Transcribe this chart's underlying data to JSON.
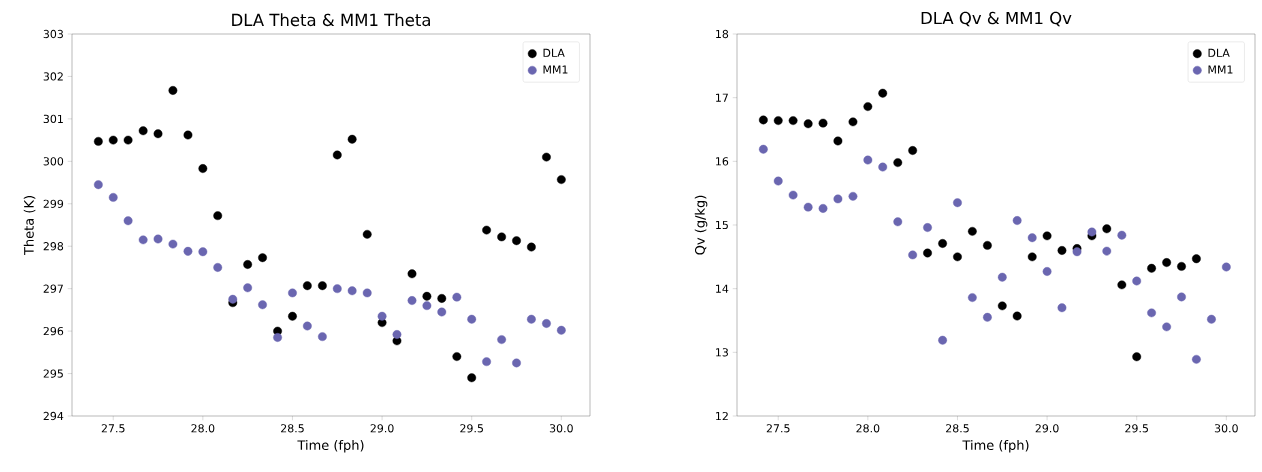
{
  "chart_data": [
    {
      "type": "scatter",
      "title": "DLA Theta & MM1 Theta",
      "xlabel": "Time (fph)",
      "ylabel": "Theta (K)",
      "xlim": [
        27.27,
        30.16
      ],
      "ylim": [
        294,
        303
      ],
      "xticks": [
        {
          "value": 27.5,
          "label": "27.5"
        },
        {
          "value": 28.0,
          "label": "28.0"
        },
        {
          "value": 28.5,
          "label": "28.5"
        },
        {
          "value": 29.0,
          "label": "29.0"
        },
        {
          "value": 29.5,
          "label": "29.5"
        },
        {
          "value": 30.0,
          "label": "30.0"
        }
      ],
      "yticks": [
        294,
        295,
        296,
        297,
        298,
        299,
        300,
        301,
        302,
        303
      ],
      "legend": "top right",
      "series": [
        {
          "name": "DLA",
          "color": "#000000",
          "x": [
            27.417,
            27.5,
            27.583,
            27.667,
            27.75,
            27.833,
            27.917,
            28.0,
            28.083,
            28.167,
            28.25,
            28.333,
            28.417,
            28.5,
            28.583,
            28.667,
            28.75,
            28.833,
            28.917,
            29.0,
            29.083,
            29.167,
            29.25,
            29.333,
            29.417,
            29.5,
            29.583,
            29.667,
            29.75,
            29.833,
            29.917,
            30.0
          ],
          "values": [
            300.47,
            300.5,
            300.5,
            300.72,
            300.65,
            301.67,
            300.62,
            299.83,
            298.72,
            296.67,
            297.57,
            297.73,
            296.0,
            296.35,
            297.07,
            297.07,
            300.15,
            300.52,
            298.28,
            296.2,
            295.77,
            297.35,
            296.82,
            296.77,
            295.4,
            294.9,
            298.38,
            298.22,
            298.13,
            297.98,
            300.1,
            299.57
          ]
        },
        {
          "name": "MM1",
          "color": "#6a66b0",
          "x": [
            27.417,
            27.5,
            27.583,
            27.667,
            27.75,
            27.833,
            27.917,
            28.0,
            28.083,
            28.167,
            28.25,
            28.333,
            28.417,
            28.5,
            28.583,
            28.667,
            28.75,
            28.833,
            28.917,
            29.0,
            29.083,
            29.167,
            29.25,
            29.333,
            29.417,
            29.5,
            29.583,
            29.667,
            29.75,
            29.833,
            29.917,
            30.0
          ],
          "values": [
            299.45,
            299.15,
            298.6,
            298.15,
            298.17,
            298.05,
            297.88,
            297.87,
            297.5,
            296.75,
            297.02,
            296.62,
            295.85,
            296.9,
            296.12,
            295.87,
            297.0,
            296.95,
            296.9,
            296.35,
            295.92,
            296.72,
            296.6,
            296.45,
            296.8,
            296.28,
            295.28,
            295.8,
            295.25,
            296.28,
            296.18,
            296.02
          ]
        }
      ]
    },
    {
      "type": "scatter",
      "title": "DLA Qv & MM1 Qv",
      "xlabel": "Time (fph)",
      "ylabel": "Qv (g/kg)",
      "xlim": [
        27.27,
        30.16
      ],
      "ylim": [
        12,
        18
      ],
      "xticks": [
        {
          "value": 27.5,
          "label": "27.5"
        },
        {
          "value": 28.0,
          "label": "28.0"
        },
        {
          "value": 28.5,
          "label": "28.5"
        },
        {
          "value": 29.0,
          "label": "29.0"
        },
        {
          "value": 29.5,
          "label": "29.5"
        },
        {
          "value": 30.0,
          "label": "30.0"
        }
      ],
      "yticks": [
        12,
        13,
        14,
        15,
        16,
        17,
        18
      ],
      "legend": "top right",
      "series": [
        {
          "name": "DLA",
          "color": "#000000",
          "x": [
            27.417,
            27.5,
            27.583,
            27.667,
            27.75,
            27.833,
            27.917,
            28.0,
            28.083,
            28.167,
            28.25,
            28.333,
            28.417,
            28.5,
            28.583,
            28.667,
            28.75,
            28.833,
            28.917,
            29.0,
            29.083,
            29.167,
            29.25,
            29.333,
            29.417,
            29.5,
            29.583,
            29.667,
            29.75,
            29.833
          ],
          "values": [
            16.65,
            16.64,
            16.64,
            16.59,
            16.6,
            16.32,
            16.62,
            16.86,
            17.07,
            15.98,
            16.17,
            14.56,
            14.71,
            14.5,
            14.9,
            14.68,
            13.73,
            13.57,
            14.5,
            14.83,
            14.6,
            14.63,
            14.83,
            14.94,
            14.06,
            12.93,
            14.32,
            14.41,
            14.35,
            14.47
          ]
        },
        {
          "name": "MM1",
          "color": "#6a66b0",
          "x": [
            27.417,
            27.5,
            27.583,
            27.667,
            27.75,
            27.833,
            27.917,
            28.0,
            28.083,
            28.167,
            28.25,
            28.333,
            28.417,
            28.5,
            28.583,
            28.667,
            28.75,
            28.833,
            28.917,
            29.0,
            29.083,
            29.167,
            29.25,
            29.333,
            29.417,
            29.5,
            29.583,
            29.667,
            29.75,
            29.833,
            29.917,
            30.0
          ],
          "values": [
            16.19,
            15.69,
            15.47,
            15.28,
            15.26,
            15.41,
            15.45,
            16.02,
            15.91,
            15.05,
            14.53,
            14.96,
            13.19,
            15.35,
            13.86,
            13.55,
            14.18,
            15.07,
            14.8,
            14.27,
            13.7,
            14.58,
            14.89,
            14.59,
            14.84,
            14.12,
            13.62,
            13.4,
            13.87,
            12.89,
            13.52,
            14.34
          ]
        }
      ]
    }
  ]
}
